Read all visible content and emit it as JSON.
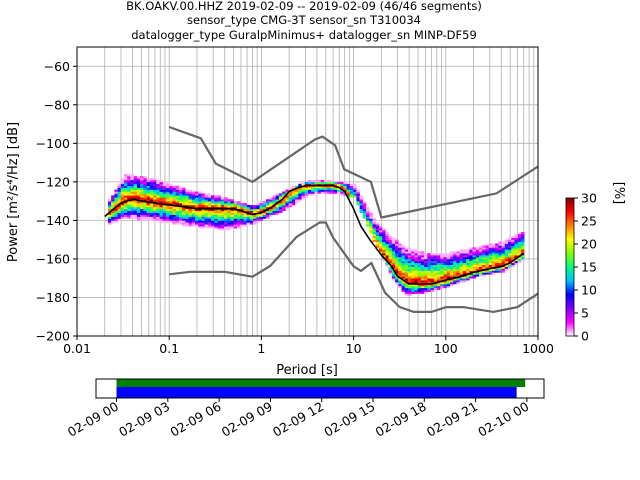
{
  "title_lines": [
    "BK.OAKV.00.HHZ   2019-02-09 -- 2019-02-09  (46/46 segments)",
    "sensor_type CMG-3T sensor_sn T310034",
    "datalogger_type GuralpMinimus+ datalogger_sn MINP-DF59"
  ],
  "chart_data": [
    {
      "type": "heatmap",
      "xlabel": "Period [s]",
      "ylabel": "Power [m²/s⁴/Hz] [dB]",
      "x_scale": "log",
      "xlim": [
        0.01,
        1000
      ],
      "ylim": [
        -200,
        -50
      ],
      "x_ticks": [
        0.01,
        0.1,
        1,
        10,
        100,
        1000
      ],
      "x_tick_labels": [
        "0.01",
        "0.1",
        "1",
        "10",
        "100",
        "1000"
      ],
      "y_ticks": [
        -200,
        -180,
        -160,
        -140,
        -120,
        -100,
        -80,
        -60
      ],
      "y_tick_labels": [
        "−200",
        "−180",
        "−160",
        "−140",
        "−120",
        "−100",
        "−80",
        "−60"
      ],
      "grid": true,
      "colorbar": {
        "label": "[%]",
        "range": [
          0,
          30
        ],
        "ticks": [
          0,
          5,
          10,
          15,
          20,
          25,
          30
        ],
        "tick_labels": [
          "0",
          "5",
          "10",
          "15",
          "20",
          "25",
          "30"
        ],
        "colormap": [
          "#ffffff",
          "#ff00ff",
          "#8000ff",
          "#0000ff",
          "#00c0ff",
          "#00ff80",
          "#80ff00",
          "#ffff00",
          "#ff8000",
          "#ff0000",
          "#800000"
        ]
      },
      "series": [
        {
          "role": "new high noise model",
          "color": "#666666",
          "x": [
            0.1,
            0.22,
            0.32,
            0.8,
            3.8,
            4.6,
            6.3,
            7.9,
            15.4,
            20,
            354.8,
            1000
          ],
          "y": [
            -91.5,
            -97.4,
            -110.5,
            -120,
            -98,
            -96.5,
            -101,
            -113.5,
            -120,
            -138.5,
            -126,
            -112
          ]
        },
        {
          "role": "new low noise model",
          "color": "#666666",
          "x": [
            0.1,
            0.17,
            0.4,
            0.8,
            1.24,
            2.4,
            4.3,
            5,
            6,
            10,
            12,
            15.6,
            21.9,
            31.6,
            45,
            70,
            101,
            154,
            328,
            600,
            1000
          ],
          "y": [
            -168,
            -166.7,
            -166.7,
            -169.2,
            -163.7,
            -148.6,
            -141.1,
            -141.1,
            -149,
            -163.8,
            -166.2,
            -162.1,
            -177.5,
            -185,
            -187.5,
            -187.5,
            -185,
            -185,
            -187.5,
            -185,
            -178
          ]
        },
        {
          "role": "mode",
          "color": "#000000",
          "x": [
            0.02,
            0.025,
            0.03,
            0.04,
            0.05,
            0.07,
            0.1,
            0.15,
            0.2,
            0.3,
            0.4,
            0.5,
            0.6,
            0.8,
            1.0,
            1.3,
            1.7,
            2.0,
            2.5,
            3.0,
            4.0,
            5.0,
            6.0,
            7.0,
            8.0,
            10,
            12,
            15,
            20,
            25,
            30,
            40,
            50,
            70,
            100,
            150,
            200,
            300,
            400,
            500,
            700
          ],
          "y": [
            -138,
            -134,
            -131,
            -129,
            -130,
            -131,
            -132,
            -133,
            -134,
            -134,
            -134,
            -134,
            -135,
            -137,
            -136,
            -133,
            -129,
            -125,
            -123,
            -122,
            -122,
            -122,
            -122,
            -123,
            -125,
            -134,
            -143,
            -150,
            -158,
            -163,
            -169,
            -173,
            -173,
            -173,
            -171,
            -169,
            -167,
            -165,
            -164,
            -162,
            -157
          ]
        }
      ],
      "density": {
        "x_log_range": [
          -1.7,
          2.85
        ],
        "upper_band": [
          [
            -1.7,
            -133
          ],
          [
            -1.5,
            -117
          ],
          [
            -1.2,
            -119
          ],
          [
            -0.8,
            -125
          ],
          [
            -0.4,
            -129
          ],
          [
            -0.1,
            -133
          ],
          [
            0.2,
            -126
          ],
          [
            0.5,
            -120
          ],
          [
            0.75,
            -120
          ],
          [
            1.0,
            -122
          ],
          [
            1.2,
            -140
          ],
          [
            1.4,
            -150
          ],
          [
            1.55,
            -155
          ],
          [
            1.75,
            -158
          ],
          [
            2.0,
            -158
          ],
          [
            2.3,
            -155
          ],
          [
            2.6,
            -152
          ],
          [
            2.85,
            -146
          ]
        ],
        "lower_band": [
          [
            -1.7,
            -143
          ],
          [
            -1.5,
            -139
          ],
          [
            -1.2,
            -140
          ],
          [
            -0.8,
            -143
          ],
          [
            -0.4,
            -145
          ],
          [
            -0.1,
            -142
          ],
          [
            0.2,
            -136
          ],
          [
            0.5,
            -127
          ],
          [
            0.75,
            -126
          ],
          [
            1.0,
            -128
          ],
          [
            1.2,
            -150
          ],
          [
            1.4,
            -170
          ],
          [
            1.55,
            -179
          ],
          [
            1.75,
            -178
          ],
          [
            2.0,
            -175
          ],
          [
            2.3,
            -170
          ],
          [
            2.6,
            -167
          ],
          [
            2.85,
            -160
          ]
        ]
      }
    },
    {
      "type": "timeline",
      "x_tick_labels": [
        "02-09 00",
        "02-09 03",
        "02-09 06",
        "02-09 09",
        "02-09 12",
        "02-09 15",
        "02-09 18",
        "02-09 21",
        "02-10 00"
      ],
      "bars": [
        {
          "role": "data coverage",
          "color": "#008000",
          "start_hours": 0.0,
          "end_hours": 23.9
        },
        {
          "role": "psd coverage",
          "color": "#0000ff",
          "start_hours": 0.0,
          "end_hours": 23.4
        }
      ],
      "xlim_hours": [
        -1.2,
        25.0
      ]
    }
  ]
}
